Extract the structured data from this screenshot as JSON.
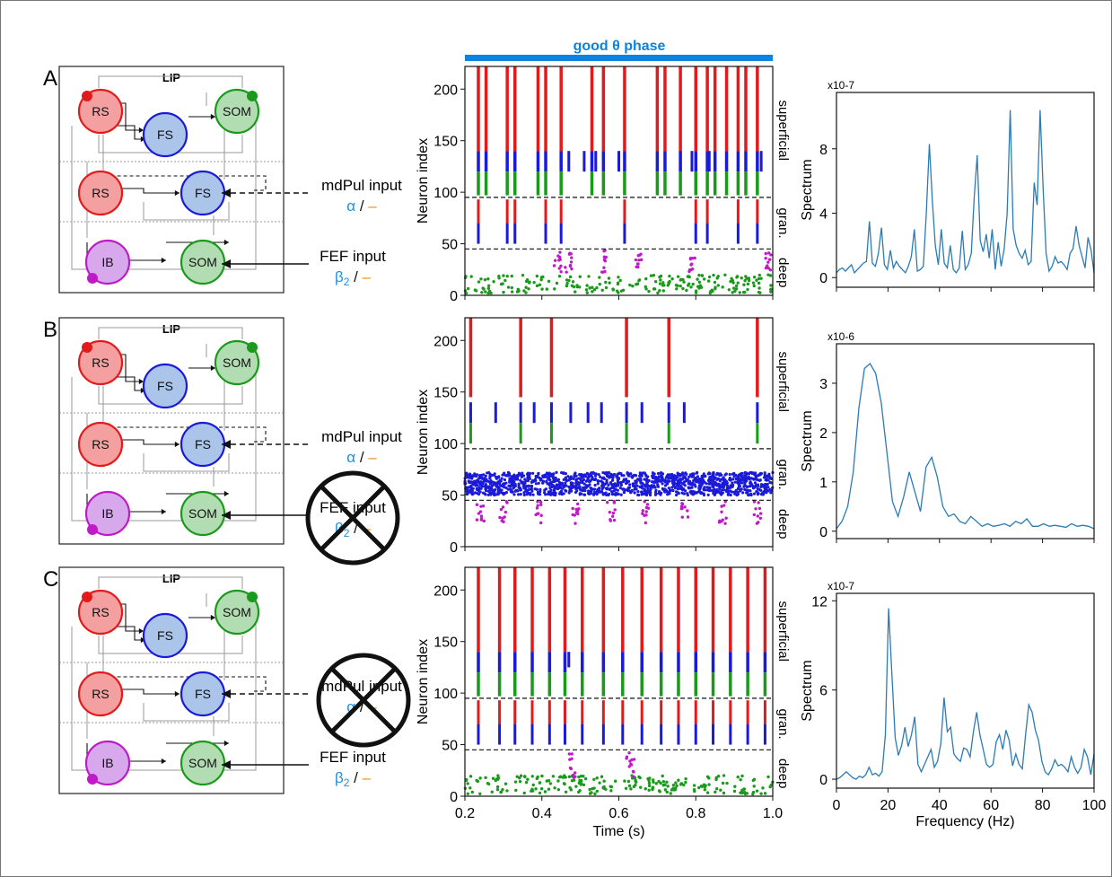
{
  "figure": {
    "good_phase_label": "good θ phase",
    "good_phase_color": "#0a84e0"
  },
  "colors": {
    "rs": "#e31a1c",
    "rs_fill": "#f4a0a0",
    "fs": "#1a1ad8",
    "fs_fill": "#aac4ea",
    "som": "#1a9a1a",
    "som_fill": "#b2dcb2",
    "ib": "#c01ac8",
    "ib_fill": "#d8a8ec",
    "spectrum": "#2b7bb5",
    "alpha": "#1e90e0",
    "dash": "#f08a0a"
  },
  "panels": [
    {
      "letter": "A",
      "circuit": {
        "title": "LIP",
        "cells": {
          "rs_sup": "RS",
          "fs_sup": "FS",
          "som_sup": "SOM",
          "rs_gran": "RS",
          "fs_gran": "FS",
          "ib": "IB",
          "som_deep": "SOM"
        },
        "mdpul": {
          "label": "mdPul input",
          "greek": "α",
          "slash": " / ",
          "dash": "–",
          "crossed": false
        },
        "fef": {
          "label": "FEF input",
          "greek": "β",
          "sub": "2",
          "slash": " / ",
          "dash": "–",
          "crossed": false
        }
      },
      "raster": {
        "ylabel": "Neuron index",
        "yticks": [
          "0",
          "50",
          "100",
          "150",
          "200"
        ],
        "layers": [
          "superficial",
          "gran.",
          "deep"
        ]
      },
      "spectrum": {
        "ylabel": "Spectrum",
        "exponent": "x10-7",
        "yticks": [
          "0",
          "4",
          "8"
        ],
        "values": [
          0.3,
          0.5,
          0.6,
          0.4,
          0.6,
          0.8,
          0.3,
          0.5,
          0.7,
          0.9,
          1.0,
          3.5,
          0.9,
          0.7,
          1.5,
          3.1,
          0.8,
          0.5,
          1.7,
          0.6,
          1.0,
          0.7,
          0.5,
          0.3,
          0.7,
          1.3,
          3.0,
          0.4,
          0.5,
          0.7,
          4.0,
          8.3,
          4.8,
          2.0,
          0.8,
          3.0,
          0.9,
          0.6,
          2.0,
          0.5,
          0.3,
          0.6,
          2.9,
          0.5,
          0.8,
          1.5,
          5.0,
          7.6,
          2.3,
          1.6,
          2.7,
          1.2,
          3.0,
          0.5,
          2.2,
          0.7,
          1.8,
          4.0,
          10.4,
          3.0,
          2.0,
          1.5,
          1.2,
          1.7,
          0.8,
          1.0,
          5.9,
          4.5,
          10.4,
          5.5,
          1.5,
          0.4,
          0.7,
          1.3,
          0.9,
          1.0,
          0.8,
          0.5,
          1.5,
          1.8,
          3.2,
          2.0,
          1.3,
          0.6,
          2.5,
          1.7,
          0.3
        ]
      },
      "chart_data": {
        "type": "line",
        "xlabel": "",
        "ylabel": "Spectrum",
        "xlim": [
          0,
          100
        ],
        "ylim": [
          -0.6,
          11.5
        ]
      }
    },
    {
      "letter": "B",
      "circuit": {
        "title": "LIP",
        "cells": {
          "rs_sup": "RS",
          "fs_sup": "FS",
          "som_sup": "SOM",
          "rs_gran": "RS",
          "fs_gran": "FS",
          "ib": "IB",
          "som_deep": "SOM"
        },
        "mdpul": {
          "label": "mdPul input",
          "greek": "α",
          "slash": " / ",
          "dash": "–",
          "crossed": false
        },
        "fef": {
          "label": "FEF input",
          "greek": "β",
          "sub": "2",
          "slash": " / ",
          "dash": "–",
          "crossed": true
        }
      },
      "raster": {
        "ylabel": "Neuron index",
        "yticks": [
          "0",
          "50",
          "100",
          "150",
          "200"
        ],
        "layers": [
          "superficial",
          "gran.",
          "deep"
        ]
      },
      "spectrum": {
        "ylabel": "Spectrum",
        "exponent": "x10-6",
        "yticks": [
          "0",
          "1",
          "2",
          "3"
        ],
        "values": [
          0.05,
          0.2,
          0.5,
          1.2,
          2.5,
          3.3,
          3.4,
          3.2,
          2.6,
          1.6,
          0.6,
          0.3,
          0.7,
          1.2,
          0.8,
          0.4,
          1.3,
          1.5,
          1.1,
          0.5,
          0.3,
          0.35,
          0.2,
          0.15,
          0.3,
          0.2,
          0.1,
          0.15,
          0.1,
          0.12,
          0.15,
          0.1,
          0.2,
          0.15,
          0.25,
          0.1,
          0.1,
          0.15,
          0.1,
          0.12,
          0.1,
          0.08,
          0.15,
          0.1,
          0.12,
          0.1,
          0.05
        ]
      },
      "chart_data": {
        "type": "line",
        "xlabel": "",
        "ylabel": "Spectrum",
        "xlim": [
          0,
          100
        ],
        "ylim": [
          -0.15,
          3.8
        ]
      }
    },
    {
      "letter": "C",
      "circuit": {
        "title": "LIP",
        "cells": {
          "rs_sup": "RS",
          "fs_sup": "FS",
          "som_sup": "SOM",
          "rs_gran": "RS",
          "fs_gran": "FS",
          "ib": "IB",
          "som_deep": "SOM"
        },
        "mdpul": {
          "label": "mdPul input",
          "greek": "α",
          "slash": " / ",
          "dash": "–",
          "crossed": true
        },
        "fef": {
          "label": "FEF input",
          "greek": "β",
          "sub": "2",
          "slash": " / ",
          "dash": "–",
          "crossed": false
        }
      },
      "raster": {
        "ylabel": "Neuron index",
        "yticks": [
          "0",
          "50",
          "100",
          "150",
          "200"
        ],
        "layers": [
          "superficial",
          "gran.",
          "deep"
        ],
        "xlabel": "Time (s)",
        "xticks": [
          "0.2",
          "0.4",
          "0.6",
          "0.8",
          "1.0"
        ]
      },
      "spectrum": {
        "ylabel": "Spectrum",
        "exponent": "x10-7",
        "yticks": [
          "0",
          "6",
          "12"
        ],
        "xlabel": "Frequency (Hz)",
        "xticks": [
          "0",
          "20",
          "40",
          "60",
          "80",
          "100"
        ],
        "values": [
          0,
          0.1,
          0.3,
          0.5,
          0.3,
          0.1,
          0.0,
          0.2,
          0.1,
          0.3,
          0.8,
          0.3,
          0.4,
          0.2,
          0.5,
          3.0,
          11.5,
          7.0,
          2.8,
          1.6,
          2.3,
          3.5,
          2.2,
          3.0,
          4.2,
          1.0,
          0.5,
          1.0,
          1.5,
          2.0,
          0.8,
          1.2,
          2.4,
          5.5,
          3.2,
          3.5,
          1.7,
          1.4,
          1.2,
          2.1,
          2.0,
          1.5,
          3.2,
          4.5,
          3.0,
          2.0,
          1.0,
          0.8,
          1.0,
          2.5,
          3.0,
          2.0,
          3.3,
          2.6,
          0.9,
          1.7,
          1.0,
          0.7,
          3.0,
          5.0,
          4.5,
          3.3,
          2.6,
          1.2,
          0.5,
          0.3,
          0.7,
          1.3,
          0.9,
          1.0,
          0.8,
          0.5,
          1.5,
          0.8,
          0.4,
          0.8,
          2.0,
          1.5,
          0.3,
          1.7
        ]
      },
      "chart_data": {
        "type": "line",
        "xlabel": "Frequency (Hz)",
        "ylabel": "Spectrum",
        "xlim": [
          0,
          100
        ],
        "ylim": [
          -0.6,
          12.5
        ]
      }
    }
  ]
}
